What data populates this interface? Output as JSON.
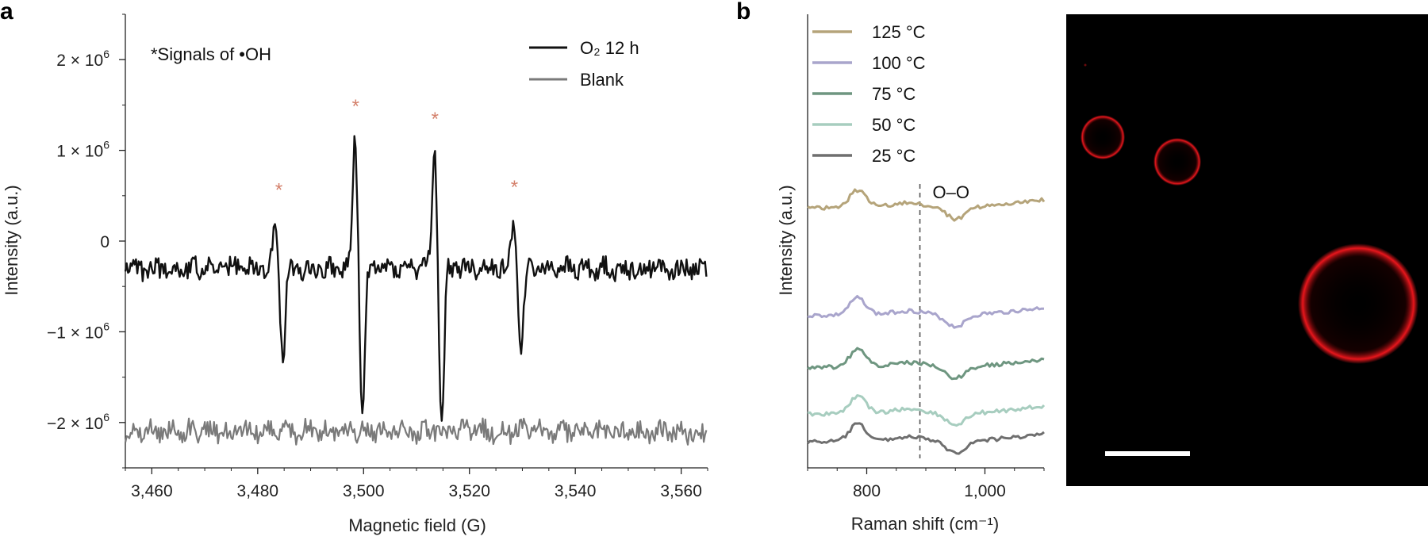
{
  "figure": {
    "panel_a_letter": "a",
    "panel_b_letter": "b"
  },
  "chart_data": [
    {
      "type": "line",
      "panel": "a",
      "xlabel": "Magnetic field (G)",
      "ylabel": "Intensity (a.u.)",
      "xlim": [
        3455,
        3565
      ],
      "ylim": [
        -2.5,
        2.5
      ],
      "y_unit_multiplier": 1000000,
      "x_ticks": [
        3460,
        3480,
        3500,
        3520,
        3540,
        3560
      ],
      "x_tick_labels": [
        "3,460",
        "3,480",
        "3,500",
        "3,520",
        "3,540",
        "3,560"
      ],
      "y_ticks": [
        -2,
        -1,
        0,
        1,
        2
      ],
      "y_tick_labels": [
        {
          "value": 2,
          "main": "2 × 10",
          "exp": "6"
        },
        {
          "value": 1,
          "main": "1 × 10",
          "exp": "6"
        },
        {
          "value": 0,
          "main": "0",
          "exp": ""
        },
        {
          "value": -1,
          "main": "−1 × 10",
          "exp": "6"
        },
        {
          "value": -2,
          "main": "−2 × 10",
          "exp": "6"
        }
      ],
      "annotation": "*Signals of •OH",
      "legend_position": "top-right",
      "series": [
        {
          "name": "O₂ 12 h",
          "color": "#111111",
          "baseline": -0.3,
          "peaks": [
            {
              "center": 3484,
              "top": 0.5,
              "bottom": -1.03
            },
            {
              "center": 3499,
              "top": 1.45,
              "bottom": -1.7
            },
            {
              "center": 3514,
              "top": 1.32,
              "bottom": -1.78
            },
            {
              "center": 3529,
              "top": 0.57,
              "bottom": -1.0
            }
          ]
        },
        {
          "name": "Blank",
          "color": "#7a7a7a",
          "baseline": -2.1,
          "peaks": []
        }
      ],
      "markers": [
        {
          "symbol": "*",
          "x": 3484,
          "y": 0.6
        },
        {
          "symbol": "*",
          "x": 3498.5,
          "y": 1.52
        },
        {
          "symbol": "*",
          "x": 3513.5,
          "y": 1.38
        },
        {
          "symbol": "*",
          "x": 3528.5,
          "y": 0.63
        }
      ]
    },
    {
      "type": "line",
      "panel": "b",
      "xlabel": "Raman shift (cm⁻¹)",
      "ylabel": "Intensity (a.u.)",
      "xlim": [
        700,
        1100
      ],
      "x_ticks": [
        800,
        1000
      ],
      "x_tick_labels": [
        "800",
        "1,000"
      ],
      "y_ticks": [],
      "reference_line": {
        "x": 890,
        "label": "O–O"
      },
      "legend_position": "top-left",
      "series": [
        {
          "name": "125 °C",
          "color": "#b5a47a"
        },
        {
          "name": "100 °C",
          "color": "#a9a5cc"
        },
        {
          "name": "75 °C",
          "color": "#6e9680"
        },
        {
          "name": "50 °C",
          "color": "#a7cdbf"
        },
        {
          "name": "25 °C",
          "color": "#6f6f6f"
        }
      ]
    }
  ],
  "micrograph": {
    "background": "#000000",
    "ring_color": "#e8161c",
    "scale_bar_color": "#ffffff"
  }
}
